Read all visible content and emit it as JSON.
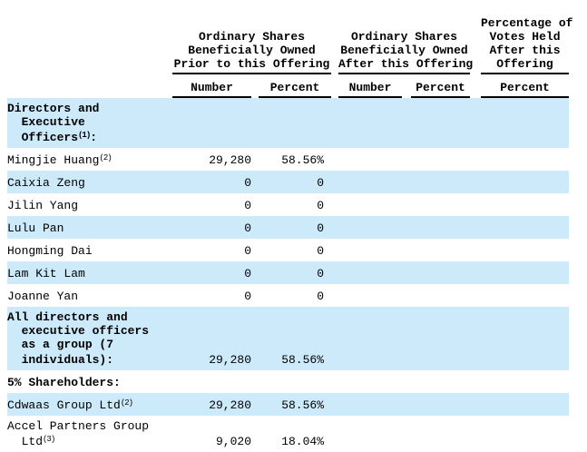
{
  "table": {
    "title": "beneficial-ownership-table",
    "colors": {
      "row_highlight": "#cdeafb",
      "text": "#000000",
      "rule": "#000000"
    },
    "column_groups": [
      {
        "label": "Ordinary Shares\nBeneficially Owned\nPrior to this Offering"
      },
      {
        "label": "Ordinary Shares\nBeneficially Owned\nAfter this Offering"
      },
      {
        "label": "Percentage of\nVotes Held\nAfter this\nOffering"
      }
    ],
    "subheaders": {
      "number_prior": "Number",
      "percent_prior": "Percent",
      "number_after": "Number",
      "percent_after": "Percent",
      "percent_votes": "Percent"
    },
    "rows": [
      {
        "name": "Directors and\n  Executive\n  Officers",
        "sup": "(1)",
        "suffix": ":",
        "bold": true,
        "shaded": true,
        "num1": "",
        "pct1": "",
        "num2": "",
        "pct2": "",
        "pct3": ""
      },
      {
        "name": "Mingjie Huang",
        "sup": "(2)",
        "suffix": "",
        "bold": false,
        "shaded": false,
        "num1": "29,280",
        "pct1": "58.56%",
        "num2": "",
        "pct2": "",
        "pct3": ""
      },
      {
        "name": "Caixia Zeng",
        "sup": "",
        "suffix": "",
        "bold": false,
        "shaded": true,
        "num1": "0",
        "pct1": "0",
        "num2": "",
        "pct2": "",
        "pct3": ""
      },
      {
        "name": "Jilin Yang",
        "sup": "",
        "suffix": "",
        "bold": false,
        "shaded": false,
        "num1": "0",
        "pct1": "0",
        "num2": "",
        "pct2": "",
        "pct3": ""
      },
      {
        "name": "Lulu Pan",
        "sup": "",
        "suffix": "",
        "bold": false,
        "shaded": true,
        "num1": "0",
        "pct1": "0",
        "num2": "",
        "pct2": "",
        "pct3": ""
      },
      {
        "name": "Hongming Dai",
        "sup": "",
        "suffix": "",
        "bold": false,
        "shaded": false,
        "num1": "0",
        "pct1": "0",
        "num2": "",
        "pct2": "",
        "pct3": ""
      },
      {
        "name": "Lam Kit Lam",
        "sup": "",
        "suffix": "",
        "bold": false,
        "shaded": true,
        "num1": "0",
        "pct1": "0",
        "num2": "",
        "pct2": "",
        "pct3": ""
      },
      {
        "name": "Joanne Yan",
        "sup": "",
        "suffix": "",
        "bold": false,
        "shaded": false,
        "num1": "0",
        "pct1": "0",
        "num2": "",
        "pct2": "",
        "pct3": ""
      },
      {
        "name": "All directors and\n  executive officers\n  as a group (7\n  individuals):",
        "sup": "",
        "suffix": "",
        "bold": true,
        "shaded": true,
        "num1": "29,280",
        "pct1": "58.56%",
        "num2": "",
        "pct2": "",
        "pct3": ""
      },
      {
        "name": "5% Shareholders:",
        "sup": "",
        "suffix": "",
        "bold": true,
        "shaded": false,
        "num1": "",
        "pct1": "",
        "num2": "",
        "pct2": "",
        "pct3": ""
      },
      {
        "name": "Cdwaas Group Ltd",
        "sup": "(2)",
        "suffix": "",
        "bold": false,
        "shaded": true,
        "num1": "29,280",
        "pct1": "58.56%",
        "num2": "",
        "pct2": "",
        "pct3": ""
      },
      {
        "name": "Accel Partners Group\n  Ltd",
        "sup": "(3)",
        "suffix": "",
        "bold": false,
        "shaded": false,
        "num1": "9,020",
        "pct1": "18.04%",
        "num2": "",
        "pct2": "",
        "pct3": ""
      }
    ]
  }
}
